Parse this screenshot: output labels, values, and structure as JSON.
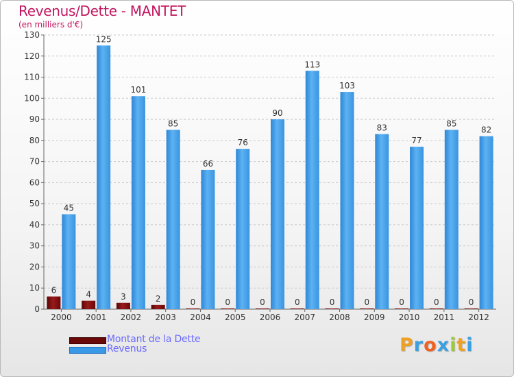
{
  "header": {
    "title": "Revenus/Dette - MANTET",
    "subtitle": "(en milliers d'€)"
  },
  "legend": [
    {
      "label": "Montant de la Dette",
      "color": "#7a0a0a"
    },
    {
      "label": "Revenus",
      "color": "#3a9ae8"
    }
  ],
  "logo": {
    "text": "Proxiti",
    "letters": [
      {
        "ch": "P",
        "color": "#f0a020"
      },
      {
        "ch": "r",
        "color": "#3aa0e0"
      },
      {
        "ch": "o",
        "color": "#f06020"
      },
      {
        "ch": "x",
        "color": "#3aa0e0"
      },
      {
        "ch": "i",
        "color": "#9acd32"
      },
      {
        "ch": "t",
        "color": "#f0a020"
      },
      {
        "ch": "i",
        "color": "#3aa0e0"
      }
    ]
  },
  "chart_data": {
    "type": "bar",
    "title": "Revenus/Dette - MANTET",
    "subtitle": "(en milliers d'€)",
    "categories": [
      "2000",
      "2001",
      "2002",
      "2003",
      "2004",
      "2005",
      "2006",
      "2007",
      "2008",
      "2009",
      "2010",
      "2011",
      "2012"
    ],
    "series": [
      {
        "name": "Montant de la Dette",
        "color": "#7a0a0a",
        "values": [
          6,
          4,
          3,
          2,
          0,
          0,
          0,
          0,
          0,
          0,
          0,
          0,
          0
        ]
      },
      {
        "name": "Revenus",
        "color": "#3a9ae8",
        "values": [
          45,
          125,
          101,
          85,
          66,
          76,
          90,
          113,
          103,
          83,
          77,
          85,
          82
        ]
      }
    ],
    "ylim": [
      0,
      130
    ],
    "yticks": [
      0,
      10,
      20,
      30,
      40,
      50,
      60,
      70,
      80,
      90,
      100,
      110,
      120,
      130
    ],
    "grid": true,
    "legend_position": "bottom-left"
  }
}
